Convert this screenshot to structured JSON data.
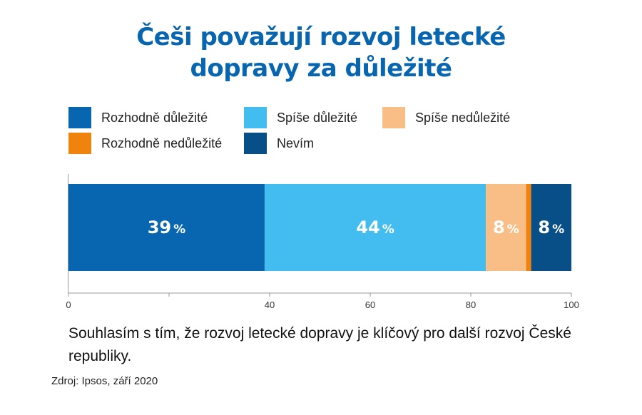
{
  "chart_data": {
    "type": "bar",
    "orientation": "horizontal",
    "stacked": true,
    "title_lines": [
      "Češi považují rozvoj letecké",
      "dopravy za důležité"
    ],
    "series": [
      {
        "name": "Rozhodně důležité",
        "value": 39,
        "label": "39",
        "color": "#0866b0",
        "text_color": "#ffffff"
      },
      {
        "name": "Spíše důležité",
        "value": 44,
        "label": "44",
        "color": "#43bdf0",
        "text_color": "#ffffff"
      },
      {
        "name": "Spíše nedůležité",
        "value": 8,
        "label": "8",
        "color": "#f9be85",
        "text_color": "#ffffff"
      },
      {
        "name": "Rozhodně nedůležité",
        "value": 1,
        "label": "",
        "color": "#f0820e",
        "text_color": "#ffffff"
      },
      {
        "name": "Nevím",
        "value": 8,
        "label": "8",
        "color": "#074f86",
        "text_color": "#ffffff"
      }
    ],
    "percent_suffix": "%",
    "xlim": [
      0,
      100
    ],
    "x_ticks": [
      0,
      20,
      40,
      60,
      80,
      100
    ],
    "x_tick_labels": [
      "0",
      "",
      "40",
      "60",
      "80",
      "100"
    ],
    "legend_placement": "top",
    "grid": false,
    "caption": "Souhlasím s tím, že rozvoj letecké dopravy je klíčový pro další rozvoj České republiky."
  },
  "source": "Zdroj: Ipsos, září 2020"
}
